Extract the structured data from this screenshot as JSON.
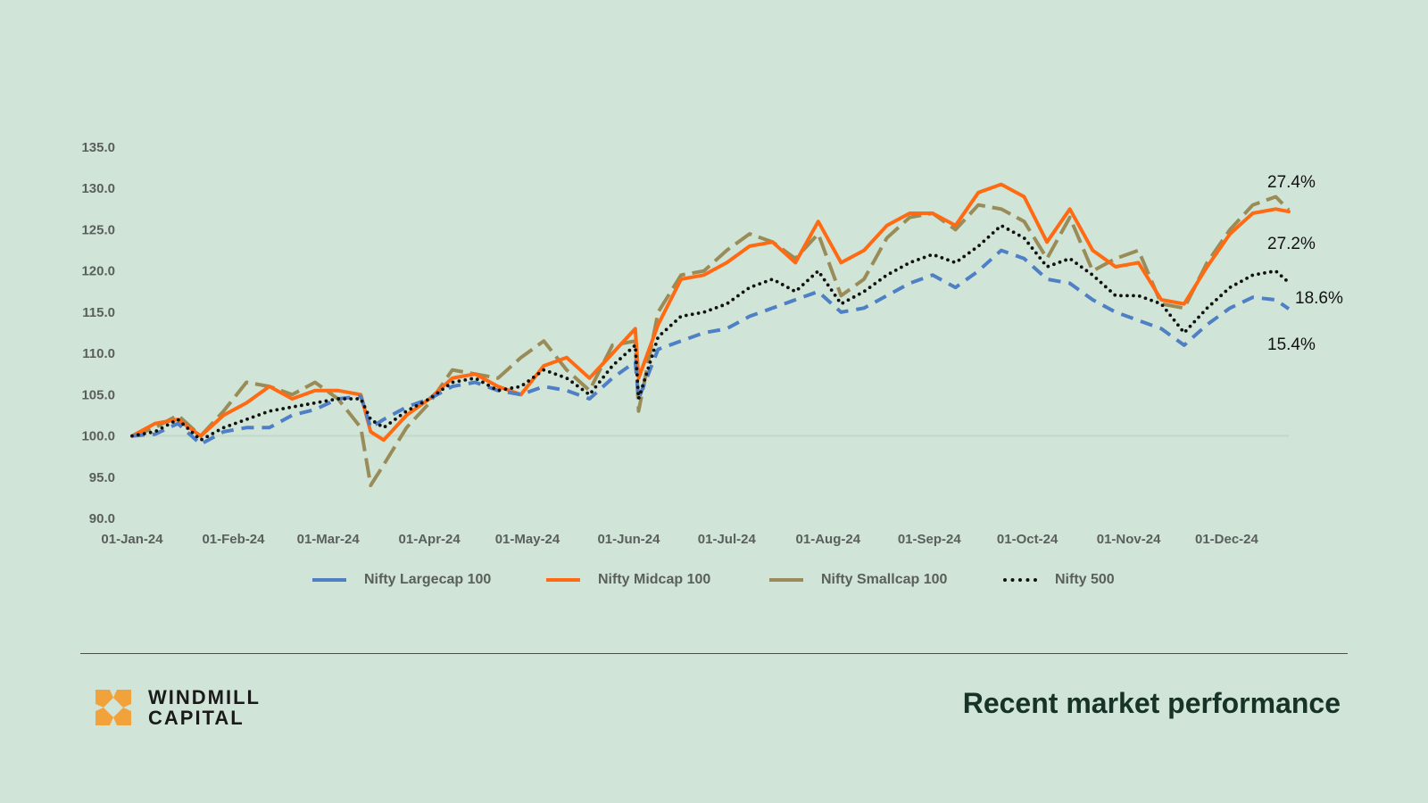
{
  "footer": {
    "brand_line1": "WINDMILL",
    "brand_line2": "CAPITAL",
    "title": "Recent market performance"
  },
  "colors": {
    "background": "#d0e5d8",
    "largecap": "#4f7fc4",
    "midcap": "#ff6a13",
    "smallcap": "#9a8c58",
    "nifty500": "#111111",
    "logo": "#f2a23a"
  },
  "icons": {
    "logo": "windmill-logo-icon"
  },
  "chart_data": {
    "type": "line",
    "title": "",
    "xlabel": "",
    "ylabel": "",
    "ylim": [
      90,
      135
    ],
    "yticks": [
      "90.0",
      "95.0",
      "100.0",
      "105.0",
      "110.0",
      "115.0",
      "120.0",
      "125.0",
      "130.0",
      "135.0"
    ],
    "xticks": [
      "01-Jan-24",
      "01-Feb-24",
      "01-Mar-24",
      "01-Apr-24",
      "01-May-24",
      "01-Jun-24",
      "01-Jul-24",
      "01-Aug-24",
      "01-Sep-24",
      "01-Oct-24",
      "01-Nov-24",
      "01-Dec-24"
    ],
    "x_range": [
      "01-Jan-24",
      "20-Dec-24"
    ],
    "grid": false,
    "baseline": 100,
    "legend_position": "bottom",
    "series": [
      {
        "name": "Nifty Largecap 100",
        "style": "dashed",
        "end_label": "15.4%",
        "points": [
          [
            "01-Jan-24",
            100.0
          ],
          [
            "08-Jan-24",
            100.2
          ],
          [
            "15-Jan-24",
            101.5
          ],
          [
            "22-Jan-24",
            99.0
          ],
          [
            "29-Jan-24",
            100.5
          ],
          [
            "05-Feb-24",
            101.0
          ],
          [
            "12-Feb-24",
            101.0
          ],
          [
            "19-Feb-24",
            102.5
          ],
          [
            "26-Feb-24",
            103.2
          ],
          [
            "04-Mar-24",
            104.5
          ],
          [
            "11-Mar-24",
            104.8
          ],
          [
            "14-Mar-24",
            101.0
          ],
          [
            "18-Mar-24",
            102.0
          ],
          [
            "25-Mar-24",
            103.5
          ],
          [
            "01-Apr-24",
            104.5
          ],
          [
            "08-Apr-24",
            106.0
          ],
          [
            "15-Apr-24",
            106.5
          ],
          [
            "22-Apr-24",
            105.5
          ],
          [
            "29-Apr-24",
            105.0
          ],
          [
            "06-May-24",
            106.0
          ],
          [
            "13-May-24",
            105.5
          ],
          [
            "20-May-24",
            104.5
          ],
          [
            "27-May-24",
            107.0
          ],
          [
            "03-Jun-24",
            109.0
          ],
          [
            "04-Jun-24",
            104.5
          ],
          [
            "10-Jun-24",
            110.5
          ],
          [
            "17-Jun-24",
            111.5
          ],
          [
            "24-Jun-24",
            112.5
          ],
          [
            "01-Jul-24",
            113.0
          ],
          [
            "08-Jul-24",
            114.5
          ],
          [
            "15-Jul-24",
            115.5
          ],
          [
            "22-Jul-24",
            116.5
          ],
          [
            "29-Jul-24",
            117.5
          ],
          [
            "05-Aug-24",
            115.0
          ],
          [
            "12-Aug-24",
            115.5
          ],
          [
            "19-Aug-24",
            117.0
          ],
          [
            "26-Aug-24",
            118.5
          ],
          [
            "02-Sep-24",
            119.5
          ],
          [
            "09-Sep-24",
            118.0
          ],
          [
            "16-Sep-24",
            120.0
          ],
          [
            "23-Sep-24",
            122.5
          ],
          [
            "30-Sep-24",
            121.5
          ],
          [
            "07-Oct-24",
            119.0
          ],
          [
            "14-Oct-24",
            118.5
          ],
          [
            "21-Oct-24",
            116.5
          ],
          [
            "28-Oct-24",
            115.0
          ],
          [
            "04-Nov-24",
            114.0
          ],
          [
            "11-Nov-24",
            113.0
          ],
          [
            "18-Nov-24",
            111.0
          ],
          [
            "25-Nov-24",
            113.5
          ],
          [
            "02-Dec-24",
            115.5
          ],
          [
            "09-Dec-24",
            116.8
          ],
          [
            "16-Dec-24",
            116.5
          ],
          [
            "20-Dec-24",
            115.4
          ]
        ]
      },
      {
        "name": "Nifty Midcap 100",
        "style": "solid",
        "end_label": "27.2%",
        "points": [
          [
            "01-Jan-24",
            100.0
          ],
          [
            "08-Jan-24",
            101.5
          ],
          [
            "15-Jan-24",
            102.0
          ],
          [
            "22-Jan-24",
            100.0
          ],
          [
            "29-Jan-24",
            102.5
          ],
          [
            "05-Feb-24",
            104.0
          ],
          [
            "12-Feb-24",
            106.0
          ],
          [
            "19-Feb-24",
            104.5
          ],
          [
            "26-Feb-24",
            105.5
          ],
          [
            "04-Mar-24",
            105.5
          ],
          [
            "11-Mar-24",
            105.0
          ],
          [
            "14-Mar-24",
            100.5
          ],
          [
            "18-Mar-24",
            99.5
          ],
          [
            "25-Mar-24",
            102.5
          ],
          [
            "01-Apr-24",
            104.5
          ],
          [
            "08-Apr-24",
            107.0
          ],
          [
            "15-Apr-24",
            107.5
          ],
          [
            "22-Apr-24",
            106.0
          ],
          [
            "29-Apr-24",
            105.0
          ],
          [
            "06-May-24",
            108.5
          ],
          [
            "13-May-24",
            109.5
          ],
          [
            "20-May-24",
            107.0
          ],
          [
            "27-May-24",
            110.0
          ],
          [
            "03-Jun-24",
            113.0
          ],
          [
            "04-Jun-24",
            107.0
          ],
          [
            "10-Jun-24",
            113.5
          ],
          [
            "17-Jun-24",
            119.0
          ],
          [
            "24-Jun-24",
            119.5
          ],
          [
            "01-Jul-24",
            121.0
          ],
          [
            "08-Jul-24",
            123.0
          ],
          [
            "15-Jul-24",
            123.5
          ],
          [
            "22-Jul-24",
            121.0
          ],
          [
            "29-Jul-24",
            126.0
          ],
          [
            "05-Aug-24",
            121.0
          ],
          [
            "12-Aug-24",
            122.5
          ],
          [
            "19-Aug-24",
            125.5
          ],
          [
            "26-Aug-24",
            127.0
          ],
          [
            "02-Sep-24",
            127.0
          ],
          [
            "09-Sep-24",
            125.5
          ],
          [
            "16-Sep-24",
            129.5
          ],
          [
            "23-Sep-24",
            130.5
          ],
          [
            "30-Sep-24",
            129.0
          ],
          [
            "07-Oct-24",
            123.5
          ],
          [
            "14-Oct-24",
            127.5
          ],
          [
            "21-Oct-24",
            122.5
          ],
          [
            "28-Oct-24",
            120.5
          ],
          [
            "04-Nov-24",
            121.0
          ],
          [
            "11-Nov-24",
            116.5
          ],
          [
            "18-Nov-24",
            116.0
          ],
          [
            "25-Nov-24",
            120.5
          ],
          [
            "02-Dec-24",
            124.5
          ],
          [
            "09-Dec-24",
            127.0
          ],
          [
            "16-Dec-24",
            127.5
          ],
          [
            "20-Dec-24",
            127.2
          ]
        ]
      },
      {
        "name": "Nifty Smallcap 100",
        "style": "long-dashed",
        "end_label": "27.4%",
        "points": [
          [
            "01-Jan-24",
            100.0
          ],
          [
            "08-Jan-24",
            101.0
          ],
          [
            "15-Jan-24",
            102.5
          ],
          [
            "22-Jan-24",
            100.0
          ],
          [
            "29-Jan-24",
            103.0
          ],
          [
            "05-Feb-24",
            106.5
          ],
          [
            "12-Feb-24",
            106.0
          ],
          [
            "19-Feb-24",
            105.0
          ],
          [
            "26-Feb-24",
            106.5
          ],
          [
            "04-Mar-24",
            104.5
          ],
          [
            "11-Mar-24",
            101.0
          ],
          [
            "14-Mar-24",
            94.0
          ],
          [
            "18-Mar-24",
            96.5
          ],
          [
            "25-Mar-24",
            101.0
          ],
          [
            "01-Apr-24",
            104.0
          ],
          [
            "08-Apr-24",
            108.0
          ],
          [
            "15-Apr-24",
            107.5
          ],
          [
            "22-Apr-24",
            107.0
          ],
          [
            "29-Apr-24",
            109.5
          ],
          [
            "06-May-24",
            111.5
          ],
          [
            "13-May-24",
            108.0
          ],
          [
            "20-May-24",
            105.5
          ],
          [
            "27-May-24",
            111.0
          ],
          [
            "03-Jun-24",
            111.5
          ],
          [
            "04-Jun-24",
            103.0
          ],
          [
            "10-Jun-24",
            115.0
          ],
          [
            "17-Jun-24",
            119.5
          ],
          [
            "24-Jun-24",
            120.0
          ],
          [
            "01-Jul-24",
            122.5
          ],
          [
            "08-Jul-24",
            124.5
          ],
          [
            "15-Jul-24",
            123.5
          ],
          [
            "22-Jul-24",
            121.5
          ],
          [
            "29-Jul-24",
            124.5
          ],
          [
            "05-Aug-24",
            117.0
          ],
          [
            "12-Aug-24",
            119.0
          ],
          [
            "19-Aug-24",
            124.0
          ],
          [
            "26-Aug-24",
            126.5
          ],
          [
            "02-Sep-24",
            127.0
          ],
          [
            "09-Sep-24",
            125.0
          ],
          [
            "16-Sep-24",
            128.0
          ],
          [
            "23-Sep-24",
            127.5
          ],
          [
            "30-Sep-24",
            126.0
          ],
          [
            "07-Oct-24",
            121.5
          ],
          [
            "14-Oct-24",
            126.5
          ],
          [
            "21-Oct-24",
            120.0
          ],
          [
            "28-Oct-24",
            121.5
          ],
          [
            "04-Nov-24",
            122.5
          ],
          [
            "11-Nov-24",
            116.0
          ],
          [
            "18-Nov-24",
            115.5
          ],
          [
            "25-Nov-24",
            121.0
          ],
          [
            "02-Dec-24",
            125.0
          ],
          [
            "09-Dec-24",
            128.0
          ],
          [
            "16-Dec-24",
            129.0
          ],
          [
            "20-Dec-24",
            127.4
          ]
        ]
      },
      {
        "name": "Nifty 500",
        "style": "dotted",
        "end_label": "18.6%",
        "points": [
          [
            "01-Jan-24",
            100.0
          ],
          [
            "08-Jan-24",
            100.5
          ],
          [
            "15-Jan-24",
            102.0
          ],
          [
            "22-Jan-24",
            99.5
          ],
          [
            "29-Jan-24",
            101.0
          ],
          [
            "05-Feb-24",
            102.0
          ],
          [
            "12-Feb-24",
            103.0
          ],
          [
            "19-Feb-24",
            103.5
          ],
          [
            "26-Feb-24",
            104.0
          ],
          [
            "04-Mar-24",
            104.5
          ],
          [
            "11-Mar-24",
            104.5
          ],
          [
            "14-Mar-24",
            102.0
          ],
          [
            "18-Mar-24",
            101.0
          ],
          [
            "25-Mar-24",
            103.0
          ],
          [
            "01-Apr-24",
            104.5
          ],
          [
            "08-Apr-24",
            106.5
          ],
          [
            "15-Apr-24",
            107.0
          ],
          [
            "22-Apr-24",
            105.5
          ],
          [
            "29-Apr-24",
            106.0
          ],
          [
            "06-May-24",
            108.0
          ],
          [
            "13-May-24",
            107.0
          ],
          [
            "20-May-24",
            105.0
          ],
          [
            "27-May-24",
            108.5
          ],
          [
            "03-Jun-24",
            111.0
          ],
          [
            "04-Jun-24",
            104.5
          ],
          [
            "10-Jun-24",
            112.0
          ],
          [
            "17-Jun-24",
            114.5
          ],
          [
            "24-Jun-24",
            115.0
          ],
          [
            "01-Jul-24",
            116.0
          ],
          [
            "08-Jul-24",
            118.0
          ],
          [
            "15-Jul-24",
            119.0
          ],
          [
            "22-Jul-24",
            117.5
          ],
          [
            "29-Jul-24",
            120.0
          ],
          [
            "05-Aug-24",
            116.0
          ],
          [
            "12-Aug-24",
            117.5
          ],
          [
            "19-Aug-24",
            119.5
          ],
          [
            "26-Aug-24",
            121.0
          ],
          [
            "02-Sep-24",
            122.0
          ],
          [
            "09-Sep-24",
            121.0
          ],
          [
            "16-Sep-24",
            123.0
          ],
          [
            "23-Sep-24",
            125.5
          ],
          [
            "30-Sep-24",
            124.0
          ],
          [
            "07-Oct-24",
            120.5
          ],
          [
            "14-Oct-24",
            121.5
          ],
          [
            "21-Oct-24",
            119.5
          ],
          [
            "28-Oct-24",
            117.0
          ],
          [
            "04-Nov-24",
            117.0
          ],
          [
            "11-Nov-24",
            116.0
          ],
          [
            "18-Nov-24",
            112.5
          ],
          [
            "25-Nov-24",
            115.5
          ],
          [
            "02-Dec-24",
            118.0
          ],
          [
            "09-Dec-24",
            119.5
          ],
          [
            "16-Dec-24",
            120.0
          ],
          [
            "20-Dec-24",
            118.6
          ]
        ]
      }
    ]
  }
}
